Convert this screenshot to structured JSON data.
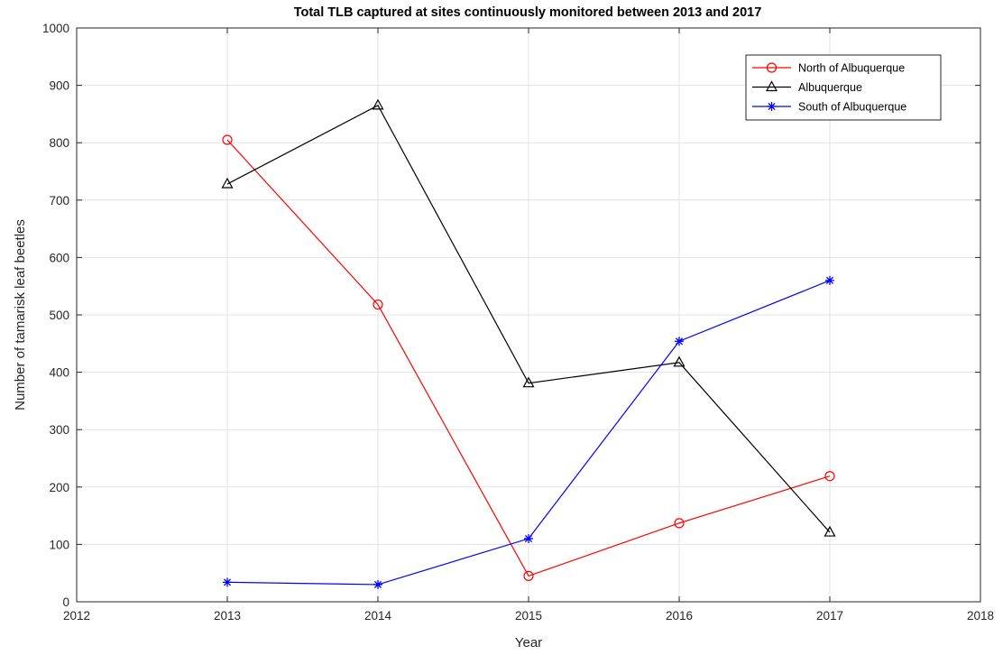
{
  "chart_data": {
    "type": "line",
    "title": "Total TLB captured at sites continuously monitored between 2013 and 2017",
    "xlabel": "Year",
    "ylabel": "Number of tamarisk leaf beetles",
    "xlim": [
      2012,
      2018
    ],
    "ylim": [
      0,
      1000
    ],
    "xticks": [
      "2012",
      "2013",
      "2014",
      "2015",
      "2016",
      "2017",
      "2018"
    ],
    "yticks": [
      "0",
      "100",
      "200",
      "300",
      "400",
      "500",
      "600",
      "700",
      "800",
      "900",
      "1000"
    ],
    "grid": true,
    "legend_position": "top-right",
    "x": [
      2013,
      2014,
      2015,
      2016,
      2017
    ],
    "series": [
      {
        "name": "North of Albuquerque",
        "values": [
          805,
          518,
          45,
          137,
          219
        ],
        "color": "#ff0000",
        "marker": "circle"
      },
      {
        "name": "Albuquerque",
        "values": [
          728,
          865,
          381,
          417,
          121
        ],
        "color": "#000000",
        "marker": "triangle"
      },
      {
        "name": "South of Albuquerque",
        "values": [
          34,
          30,
          110,
          454,
          560
        ],
        "color": "#0000ff",
        "marker": "asterisk"
      }
    ]
  }
}
